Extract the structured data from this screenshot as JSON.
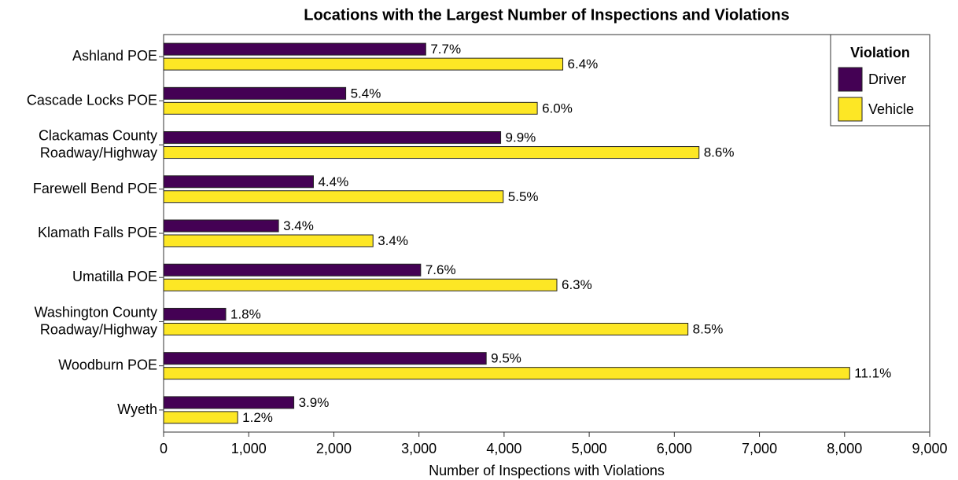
{
  "chart_data": {
    "type": "barh",
    "title": "Locations with the Largest Number of Inspections and Violations",
    "xlabel": "Number of Inspections with Violations",
    "categories": [
      "Ashland POE",
      "Cascade Locks POE",
      "Clackamas County\nRoadway/Highway",
      "Farewell Bend POE",
      "Klamath Falls POE",
      "Umatilla POE",
      "Washington County\nRoadway/Highway",
      "Woodburn POE",
      "Wyeth"
    ],
    "series": [
      {
        "name": "Driver",
        "color": "#440154",
        "values": [
          3080,
          2140,
          3960,
          1760,
          1350,
          3020,
          730,
          3790,
          1530
        ],
        "labels": [
          "7.7%",
          "5.4%",
          "9.9%",
          "4.4%",
          "3.4%",
          "7.6%",
          "1.8%",
          "9.5%",
          "3.9%"
        ]
      },
      {
        "name": "Vehicle",
        "color": "#fde725",
        "values": [
          4690,
          4390,
          6290,
          3990,
          2460,
          4620,
          6160,
          8060,
          870
        ],
        "labels": [
          "6.4%",
          "6.0%",
          "8.6%",
          "5.5%",
          "3.4%",
          "6.3%",
          "8.5%",
          "11.1%",
          "1.2%"
        ]
      }
    ],
    "legend_title": "Violation",
    "legend": "upper right",
    "xlim": [
      0,
      9000
    ],
    "xticks": [
      0,
      {
        "value": 1000,
        "label": "1,000"
      },
      {
        "value": 2000,
        "label": "2,000"
      },
      {
        "value": 3000,
        "label": "3,000"
      },
      {
        "value": 4000,
        "label": "4,000"
      },
      {
        "value": 5000,
        "label": "5,000"
      },
      {
        "value": 6000,
        "label": "6,000"
      },
      {
        "value": 7000,
        "label": "7,000"
      },
      {
        "value": 8000,
        "label": "8,000"
      },
      {
        "value": 9000,
        "label": "9,000"
      }
    ]
  }
}
